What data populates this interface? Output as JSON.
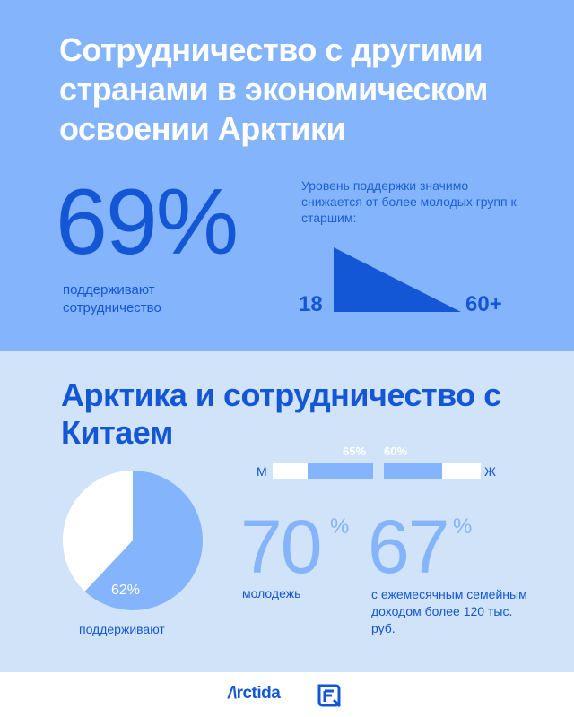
{
  "section1": {
    "title": "Сотрудничество с другими странами в экономическом освоении Арктики",
    "stat": {
      "value": "69%",
      "label": "поддерживают сотрудничество"
    },
    "trend": {
      "text": "Уровень поддержки значимо снижается от более молодых групп к старшим:",
      "age_start": "18",
      "age_end": "60+"
    }
  },
  "section2": {
    "title": "Арктика и сотрудничество с Китаем",
    "pie": {
      "label": "62%",
      "caption": "поддерживают",
      "support_share": 0.62
    },
    "gender": {
      "m_label": "М",
      "w_label": "Ж",
      "m_value": "65%",
      "w_value": "60%",
      "m_share": 0.65,
      "w_share": 0.6
    },
    "youth": {
      "value": "70",
      "unit": "%",
      "caption": "молодежь"
    },
    "income": {
      "value": "67",
      "unit": "%",
      "caption": "с ежемесячным семейным доходом более 120 тыс. руб."
    }
  },
  "footer": {
    "logo_text": "rctida"
  },
  "colors": {
    "dark_blue": "#1457d6",
    "light_blue": "#84b4fb",
    "pale_blue": "#d1e3f8",
    "white": "#ffffff"
  }
}
